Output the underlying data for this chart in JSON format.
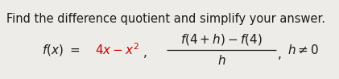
{
  "background_color": "#eeece8",
  "title_text": "Find the difference quotient and simplify your answer.",
  "title_color": "#1a1a1a",
  "title_fontsize": 10.5,
  "math_color": "#1a1a1a",
  "red_color": "#cc0000",
  "math_fontsize": 11.0,
  "fig_width": 4.21,
  "fig_height": 0.98,
  "dpi": 100
}
